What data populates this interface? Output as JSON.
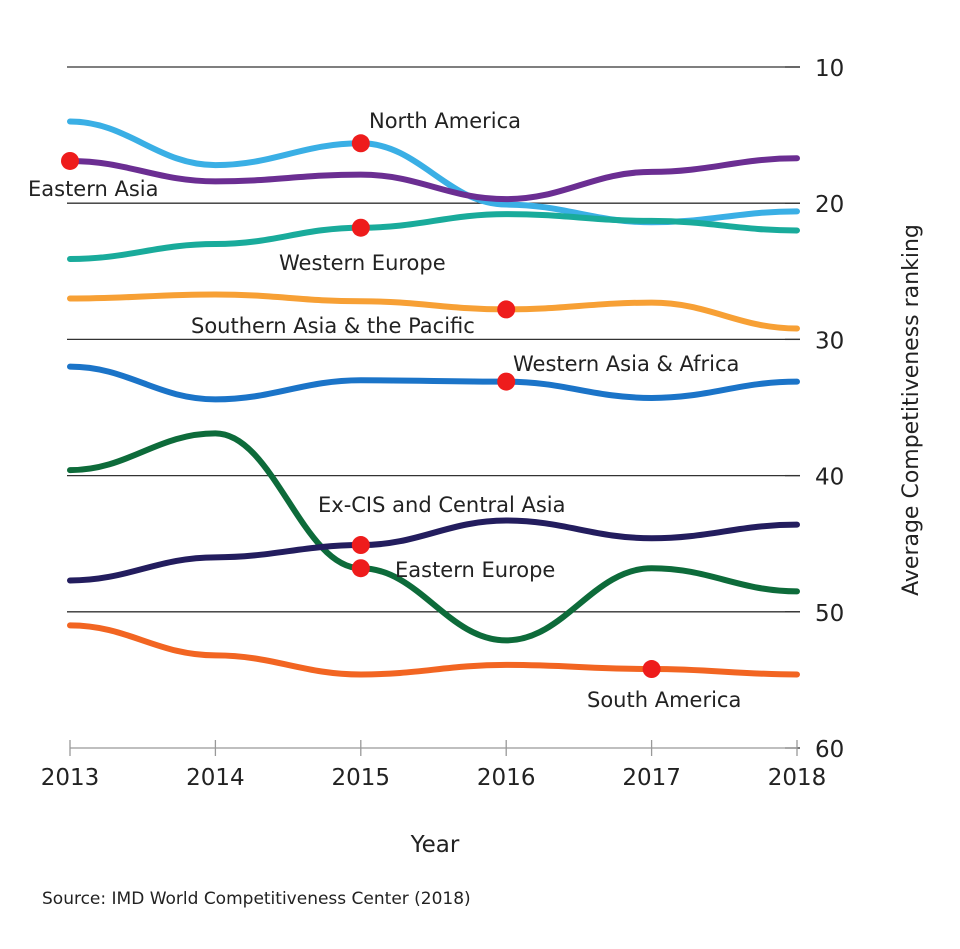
{
  "chart_data": {
    "type": "line",
    "title": "",
    "xlabel": "Year",
    "ylabel": "Average Competitiveness ranking",
    "x": [
      2013,
      2014,
      2015,
      2016,
      2017,
      2018
    ],
    "x_tick_labels": [
      "2013",
      "2014",
      "2015",
      "2016",
      "2017",
      "2018"
    ],
    "ylim": [
      60,
      10
    ],
    "y_inverted": true,
    "y_ticks": [
      10,
      20,
      30,
      40,
      50,
      60
    ],
    "y_tick_labels": [
      "10",
      "20",
      "30",
      "40",
      "50",
      "60"
    ],
    "y_axis_side": "right",
    "grid": "horizontal",
    "series": [
      {
        "name": "North America",
        "color": "#3aafe5",
        "values": [
          14.0,
          17.2,
          15.6,
          20.1,
          21.4,
          20.6
        ],
        "marker_year": 2015
      },
      {
        "name": "Eastern Asia",
        "color": "#6b2e92",
        "values": [
          16.9,
          18.4,
          17.9,
          19.7,
          17.7,
          16.7
        ],
        "marker_year": 2013
      },
      {
        "name": "Western Europe",
        "color": "#19ab9b",
        "values": [
          24.1,
          23.0,
          21.8,
          20.8,
          21.3,
          22.0
        ],
        "marker_year": 2015
      },
      {
        "name": "Southern Asia & the Pacific",
        "color": "#f7a035",
        "values": [
          27.0,
          26.7,
          27.2,
          27.8,
          27.3,
          29.2
        ],
        "marker_year": 2016
      },
      {
        "name": "Western Asia & Africa",
        "color": "#1b74c8",
        "values": [
          32.0,
          34.4,
          33.0,
          33.1,
          34.3,
          33.1
        ],
        "marker_year": 2016
      },
      {
        "name": "Eastern Europe",
        "color": "#0d6b3a",
        "values": [
          39.6,
          36.9,
          46.8,
          52.1,
          46.8,
          48.5
        ],
        "marker_year": 2015
      },
      {
        "name": "Ex-CIS and Central Asia",
        "color": "#231d5e",
        "values": [
          47.7,
          46.0,
          45.1,
          43.3,
          44.6,
          43.6
        ],
        "marker_year": 2015
      },
      {
        "name": "South America",
        "color": "#f26522",
        "values": [
          51.0,
          53.2,
          54.6,
          53.9,
          54.2,
          54.6
        ],
        "marker_year": 2017
      }
    ],
    "marker_color": "#ee1c1c",
    "source": "Source: IMD World Competitiveness Center (2018)"
  }
}
